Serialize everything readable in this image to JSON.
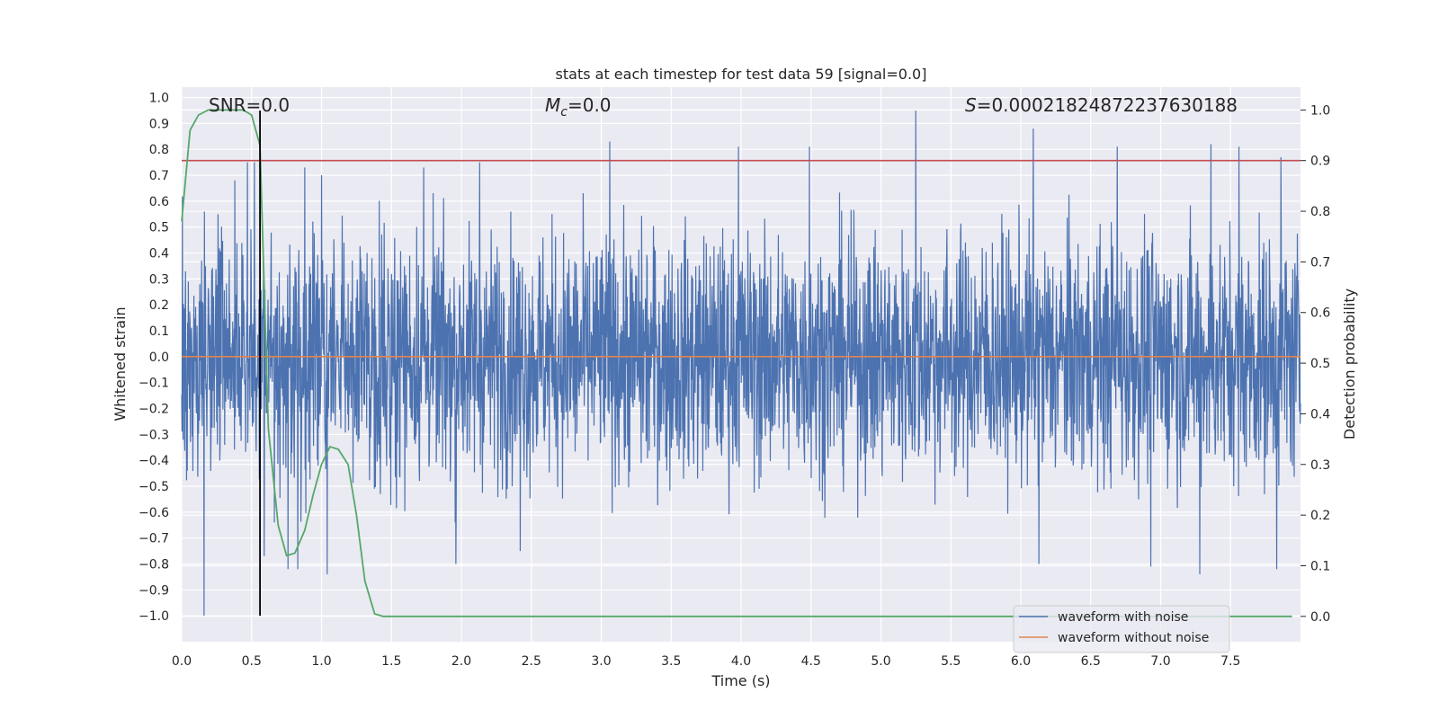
{
  "chart_data": {
    "type": "line",
    "title": "stats at each timestep for test data 59 [signal=0.0]",
    "xlabel": "Time (s)",
    "ylabel": "Whitened strain",
    "y2label": "Detection probability",
    "xlim": [
      0.0,
      8.0
    ],
    "ylim": [
      -1.1,
      1.04
    ],
    "y2lim": [
      -0.05,
      1.045
    ],
    "x_ticks": [
      0.0,
      0.5,
      1.0,
      1.5,
      2.0,
      2.5,
      3.0,
      3.5,
      4.0,
      4.5,
      5.0,
      5.5,
      6.0,
      6.5,
      7.0,
      7.5
    ],
    "x_tick_labels": [
      "0.0",
      "0.5",
      "1.0",
      "1.5",
      "2.0",
      "2.5",
      "3.0",
      "3.5",
      "4.0",
      "4.5",
      "5.0",
      "5.5",
      "6.0",
      "6.5",
      "7.0",
      "7.5"
    ],
    "y_ticks": [
      1.0,
      0.9,
      0.8,
      0.7,
      0.6,
      0.5,
      0.4,
      0.3,
      0.2,
      0.1,
      0.0,
      -0.1,
      -0.2,
      -0.3,
      -0.4,
      -0.5,
      -0.6,
      -0.7,
      -0.8,
      -0.9,
      -1.0
    ],
    "y_tick_labels": [
      "1.0",
      "0.9",
      "0.8",
      "0.7",
      "0.6",
      "0.5",
      "0.4",
      "0.3",
      "0.2",
      "0.1",
      "0.0",
      "−0.1",
      "−0.2",
      "−0.3",
      "−0.4",
      "−0.5",
      "−0.6",
      "−0.7",
      "−0.8",
      "−0.9",
      "−1.0"
    ],
    "y2_ticks": [
      1.0,
      0.9,
      0.8,
      0.7,
      0.6,
      0.5,
      0.4,
      0.3,
      0.2,
      0.1,
      0.0
    ],
    "y2_tick_labels": [
      "1.0",
      "0.9",
      "0.8",
      "0.7",
      "0.6",
      "0.5",
      "0.4",
      "0.3",
      "0.2",
      "0.1",
      "0.0"
    ],
    "annotations": {
      "snr": "SNR=0.0",
      "mc_symbol": "M",
      "mc_sub": "c",
      "mc_value": "=0.0",
      "s_symbol": "S",
      "s_value": "=0.00021824872237630188"
    },
    "legend": {
      "placement": "lower-right",
      "entries": [
        "waveform with noise",
        "waveform without noise"
      ]
    },
    "grid": true,
    "colors": {
      "background": "#eaeaf2",
      "grid": "#ffffff",
      "noisy": "#4c72b0",
      "clean": "#dd8452",
      "probability": "#55a868",
      "threshold": "#c44e52",
      "marker": "#000000"
    },
    "series": [
      {
        "name": "waveform with noise",
        "kind": "noise",
        "x_range": [
          0.0,
          8.0
        ],
        "typical_amplitude": 0.5,
        "peak_values": [
          {
            "x": 0.04,
            "y": -0.44
          },
          {
            "x": 0.16,
            "y": -1.0
          },
          {
            "x": 0.26,
            "y": 0.55
          },
          {
            "x": 0.38,
            "y": 0.68
          },
          {
            "x": 0.47,
            "y": 0.75
          },
          {
            "x": 0.52,
            "y": 0.75
          },
          {
            "x": 0.59,
            "y": -0.77
          },
          {
            "x": 0.76,
            "y": -0.82
          },
          {
            "x": 0.83,
            "y": -0.82
          },
          {
            "x": 0.88,
            "y": 0.73
          },
          {
            "x": 1.04,
            "y": -0.84
          },
          {
            "x": 1.73,
            "y": 0.73
          },
          {
            "x": 1.96,
            "y": -0.8
          },
          {
            "x": 2.13,
            "y": 0.75
          },
          {
            "x": 2.42,
            "y": -0.75
          },
          {
            "x": 3.06,
            "y": 0.83
          },
          {
            "x": 3.98,
            "y": 0.81
          },
          {
            "x": 4.49,
            "y": 0.81
          },
          {
            "x": 5.25,
            "y": 0.95
          },
          {
            "x": 6.09,
            "y": 0.88
          },
          {
            "x": 6.13,
            "y": -0.8
          },
          {
            "x": 6.69,
            "y": 0.81
          },
          {
            "x": 6.93,
            "y": -0.81
          },
          {
            "x": 7.28,
            "y": -0.84
          },
          {
            "x": 7.36,
            "y": 0.82
          },
          {
            "x": 7.56,
            "y": 0.81
          },
          {
            "x": 7.83,
            "y": -0.82
          },
          {
            "x": 7.86,
            "y": 0.77
          }
        ]
      },
      {
        "name": "waveform without noise",
        "kind": "constant",
        "x": [
          0.0,
          8.0
        ],
        "y": [
          0.0,
          0.0
        ]
      },
      {
        "kind": "probability",
        "axis": "y2",
        "x": [
          0.0,
          0.06,
          0.12,
          0.19,
          0.25,
          0.31,
          0.38,
          0.44,
          0.5,
          0.56,
          0.62,
          0.69,
          0.75,
          0.81,
          0.88,
          0.94,
          1.0,
          1.06,
          1.12,
          1.19,
          1.25,
          1.31,
          1.38,
          1.44,
          7.94
        ],
        "y": [
          0.78,
          0.96,
          0.99,
          1.0,
          1.0,
          1.0,
          1.0,
          1.0,
          0.99,
          0.93,
          0.37,
          0.18,
          0.12,
          0.125,
          0.17,
          0.24,
          0.3,
          0.335,
          0.33,
          0.3,
          0.2,
          0.07,
          0.005,
          0.0,
          0.0
        ]
      }
    ],
    "threshold_y2": 0.9,
    "marker_x": 0.56
  }
}
